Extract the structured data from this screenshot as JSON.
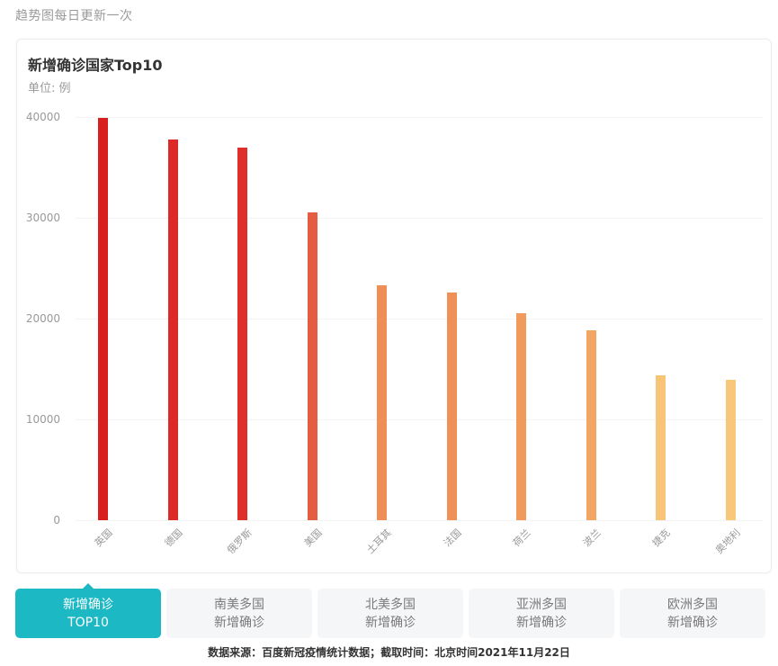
{
  "header": {
    "note": "趋势图每日更新一次"
  },
  "card": {
    "title": "新增确诊国家Top10",
    "unit": "单位: 例"
  },
  "chart_data": {
    "type": "bar",
    "title": "新增确诊国家Top10",
    "subtitle": "单位: 例",
    "xlabel": "",
    "ylabel": "单位: 例",
    "categories": [
      "英国",
      "德国",
      "俄罗斯",
      "美国",
      "土耳其",
      "法国",
      "荷兰",
      "波兰",
      "捷克",
      "奥地利"
    ],
    "values": [
      39900,
      37800,
      37000,
      30500,
      23300,
      22600,
      20500,
      18800,
      14400,
      13900
    ],
    "colors": [
      "#d91e1e",
      "#dc2a28",
      "#de2f2a",
      "#e55d40",
      "#ef8f55",
      "#ef9157",
      "#f19a5c",
      "#f3a662",
      "#f8c478",
      "#f9c77a"
    ],
    "ylim": [
      0,
      40000
    ],
    "yticks": [
      "0",
      "10000",
      "20000",
      "30000",
      "40000"
    ],
    "grid": true,
    "legend": "none",
    "x_label_rotation": -45
  },
  "tabs": [
    {
      "line1": "新增确诊",
      "line2": "TOP10",
      "active": true
    },
    {
      "line1": "南美多国",
      "line2": "新增确诊",
      "active": false
    },
    {
      "line1": "北美多国",
      "line2": "新增确诊",
      "active": false
    },
    {
      "line1": "亚洲多国",
      "line2": "新增确诊",
      "active": false
    },
    {
      "line1": "欧洲多国",
      "line2": "新增确诊",
      "active": false
    }
  ],
  "footer": {
    "source": "数据来源：百度新冠疫情统计数据；截取时间：北京时间2021年11月22日"
  },
  "colors": {
    "accent": "#1cb8c4",
    "tab_inactive_bg": "#f5f6f8"
  }
}
